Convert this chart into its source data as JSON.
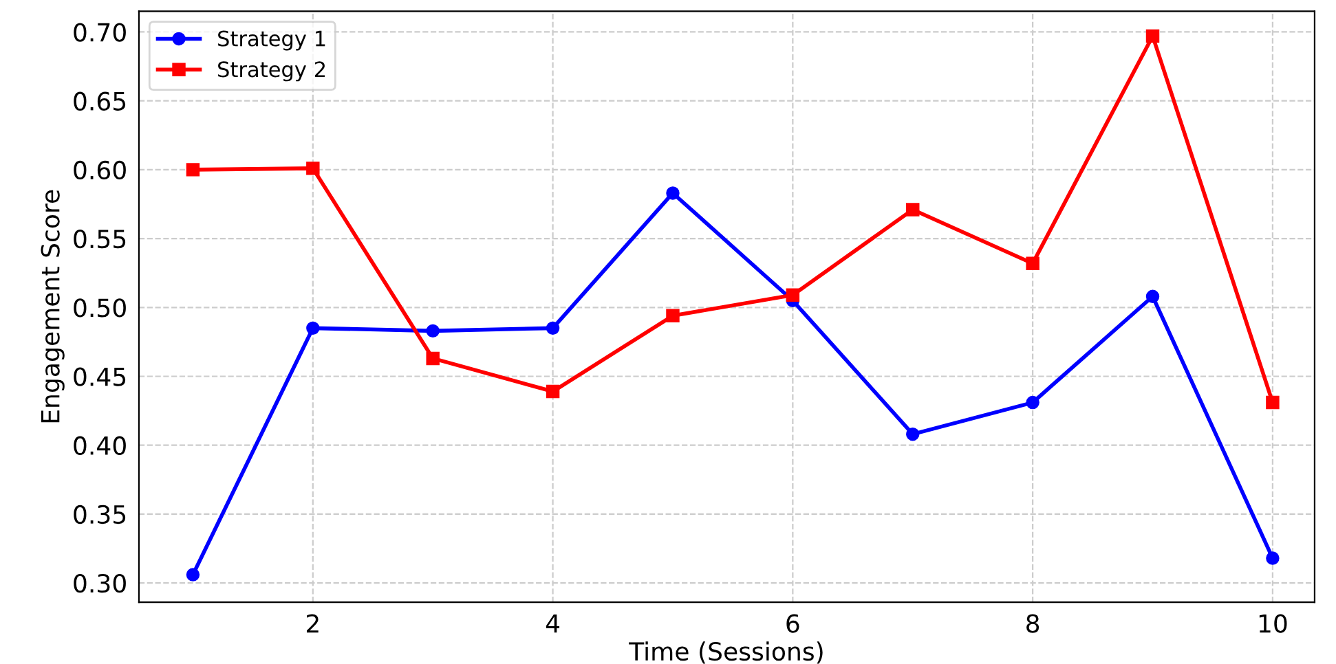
{
  "chart_data": {
    "type": "line",
    "xlabel": "Time (Sessions)",
    "ylabel": "Engagement Score",
    "x": [
      1,
      2,
      3,
      4,
      5,
      6,
      7,
      8,
      9,
      10
    ],
    "series": [
      {
        "name": "Strategy 1",
        "color": "#0000ff",
        "marker": "circle",
        "values": [
          0.306,
          0.485,
          0.483,
          0.485,
          0.583,
          0.505,
          0.408,
          0.431,
          0.508,
          0.318
        ]
      },
      {
        "name": "Strategy 2",
        "color": "#ff0000",
        "marker": "square",
        "values": [
          0.6,
          0.601,
          0.463,
          0.439,
          0.494,
          0.509,
          0.571,
          0.532,
          0.697,
          0.431
        ]
      }
    ],
    "xlim": [
      0.55,
      10.35
    ],
    "ylim": [
      0.286,
      0.715
    ],
    "xticks": [
      2,
      4,
      6,
      8,
      10
    ],
    "yticks": [
      {
        "value": 0.3,
        "label": "0.30"
      },
      0.35,
      {
        "value": 0.4,
        "label": "0.40"
      },
      0.45,
      {
        "value": 0.5,
        "label": "0.50"
      },
      0.55,
      {
        "value": 0.6,
        "label": "0.60"
      },
      0.65,
      {
        "value": 0.7,
        "label": "0.70"
      }
    ],
    "grid": true,
    "legend": "top left",
    "line_style": "solid"
  }
}
